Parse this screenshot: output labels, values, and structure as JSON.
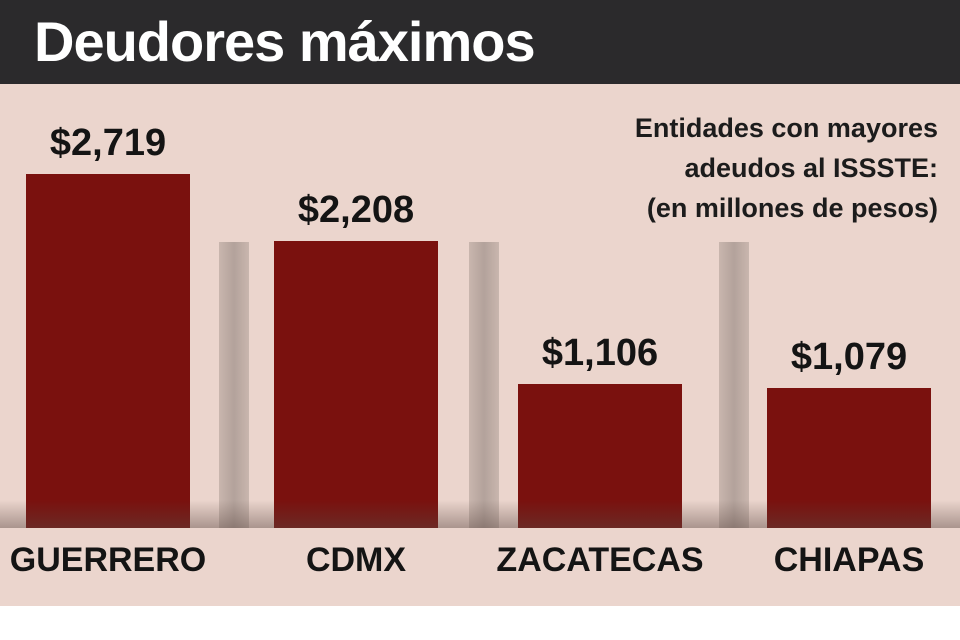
{
  "header": {
    "title": "Deudores máximos"
  },
  "chart_data": {
    "type": "bar",
    "title": "Deudores máximos",
    "subtitle_lines": [
      "Entidades con mayores",
      "adeudos al ISSSTE:",
      "(en millones de pesos)"
    ],
    "categories": [
      "GUERRERO",
      "CDMX",
      "ZACATECAS",
      "CHIAPAS"
    ],
    "values": [
      2719,
      2208,
      1106,
      1079
    ],
    "value_labels": [
      "$2,719",
      "$2,208",
      "$1,106",
      "$1,079"
    ],
    "ylim": [
      0,
      2719
    ],
    "grid": false,
    "colors": {
      "bar": "#7a110e",
      "background": "#ebd5cd",
      "header": "#2b2a2c"
    }
  }
}
